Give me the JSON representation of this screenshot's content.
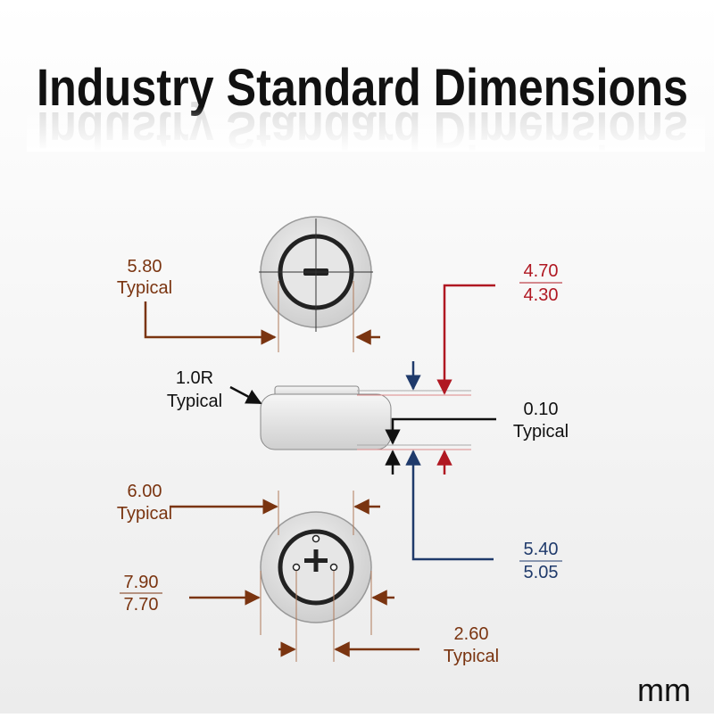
{
  "title": "Industry Standard Dimensions",
  "unit": "mm",
  "dimensions": {
    "top_diameter": {
      "value": "5.80",
      "note": "Typical"
    },
    "total_height": {
      "max": "4.70",
      "min": "4.30"
    },
    "edge_radius": {
      "value": "1.0R",
      "note": "Typical"
    },
    "cap_step": {
      "value": "0.10",
      "note": "Typical"
    },
    "bottom_ring": {
      "value": "6.00",
      "note": "Typical"
    },
    "body_height": {
      "max": "5.40",
      "min": "5.05"
    },
    "outer_diameter": {
      "max": "7.90",
      "min": "7.70"
    },
    "pin_spacing": {
      "value": "2.60",
      "note": "Typical"
    }
  }
}
